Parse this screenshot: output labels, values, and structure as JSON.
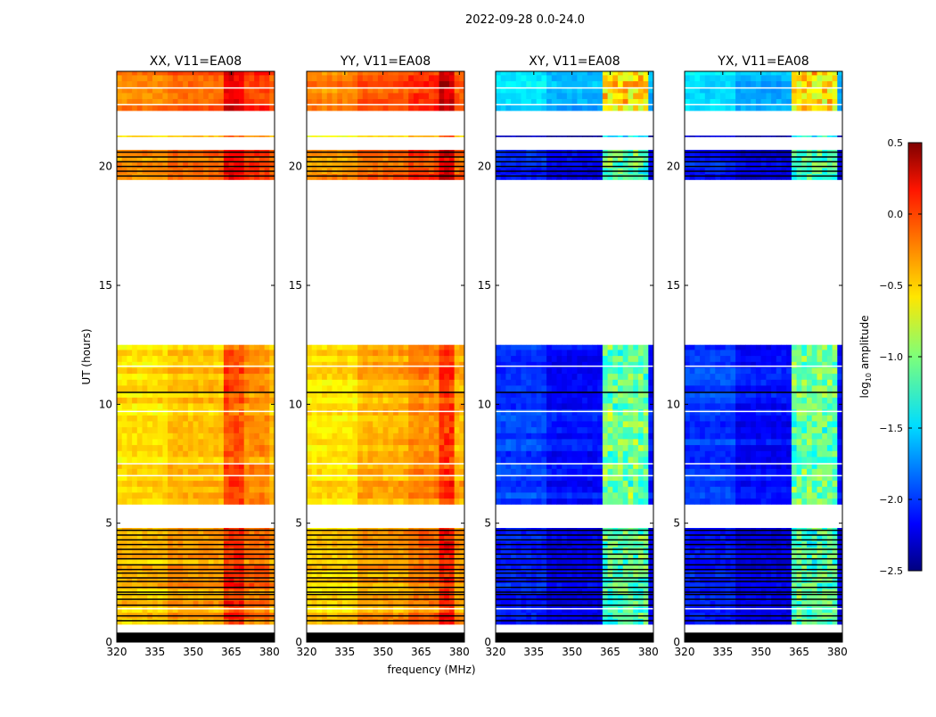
{
  "chart_data": {
    "type": "heatmap",
    "title": "2022-09-28 0.0-24.0",
    "ylabel": "UT (hours)",
    "xlabel": "frequency (MHz)",
    "xlim": [
      320,
      382
    ],
    "ylim": [
      0,
      24
    ],
    "xticks": [
      "320",
      "335",
      "350",
      "365",
      "380"
    ],
    "xtick_values": [
      320,
      335,
      350,
      365,
      380
    ],
    "yticks": [
      "0",
      "5",
      "10",
      "15",
      "20"
    ],
    "ytick_values": [
      0,
      5,
      10,
      15,
      20
    ],
    "colorbar": {
      "label": "log",
      "label_sub": "10",
      "label_rest": " amplitude",
      "range": [
        -2.5,
        0.5
      ],
      "ticks": [
        "0.5",
        "0.0",
        "−0.5",
        "−1.0",
        "−1.5",
        "−2.0",
        "−2.5"
      ],
      "tick_values": [
        0.5,
        0.0,
        -0.5,
        -1.0,
        -1.5,
        -2.0,
        -2.5
      ],
      "colormap": "jet"
    },
    "panels": [
      {
        "title": "XX, V11=EA08",
        "hot": [
          [
            363,
            369,
            0.35
          ],
          [
            370,
            380,
            0.15
          ]
        ],
        "low_freq_bias": -0.1
      },
      {
        "title": "YY, V11=EA08",
        "hot": [
          [
            372,
            378,
            0.4
          ],
          [
            360,
            371,
            0.12
          ]
        ],
        "low_freq_bias": -0.15
      },
      {
        "title": "XY, V11=EA08",
        "hot": [
          [
            362,
            380,
            1.1
          ]
        ],
        "low_freq_bias": 0.15
      },
      {
        "title": "YX, V11=EA08",
        "hot": [
          [
            362,
            380,
            1.1
          ]
        ],
        "low_freq_bias": 0.15
      }
    ],
    "time_blocks": [
      {
        "start": 0.0,
        "end": 0.4,
        "flagged": true,
        "base": [
          -0.4,
          -0.4,
          -2.3,
          -2.3
        ]
      },
      {
        "start": 0.75,
        "end": 4.8,
        "flagged": false,
        "base": [
          -0.35,
          -0.35,
          -2.2,
          -2.2
        ]
      },
      {
        "start": 5.8,
        "end": 12.5,
        "flagged": false,
        "base": [
          -0.45,
          -0.4,
          -2.1,
          -2.1
        ]
      },
      {
        "start": 19.45,
        "end": 20.7,
        "flagged": false,
        "base": [
          -0.2,
          -0.15,
          -2.2,
          -2.2
        ]
      },
      {
        "start": 21.25,
        "end": 21.3,
        "flagged": false,
        "base": [
          -0.5,
          -0.5,
          -2.4,
          -2.4
        ]
      },
      {
        "start": 22.35,
        "end": 24.0,
        "flagged": false,
        "base": [
          -0.15,
          -0.1,
          -1.6,
          -1.6
        ]
      }
    ],
    "black_lines_hours": [
      0.9,
      1.1,
      1.55,
      1.8,
      2.0,
      2.1,
      2.3,
      2.55,
      2.7,
      2.9,
      3.05,
      3.25,
      3.5,
      3.7,
      3.9,
      4.1,
      4.3,
      4.5,
      4.7,
      10.5,
      19.6,
      19.8,
      20.0,
      20.2,
      20.4,
      20.6
    ],
    "white_lines_hours": [
      1.4,
      7.0,
      7.5,
      9.7,
      11.6,
      22.6,
      23.3
    ]
  }
}
